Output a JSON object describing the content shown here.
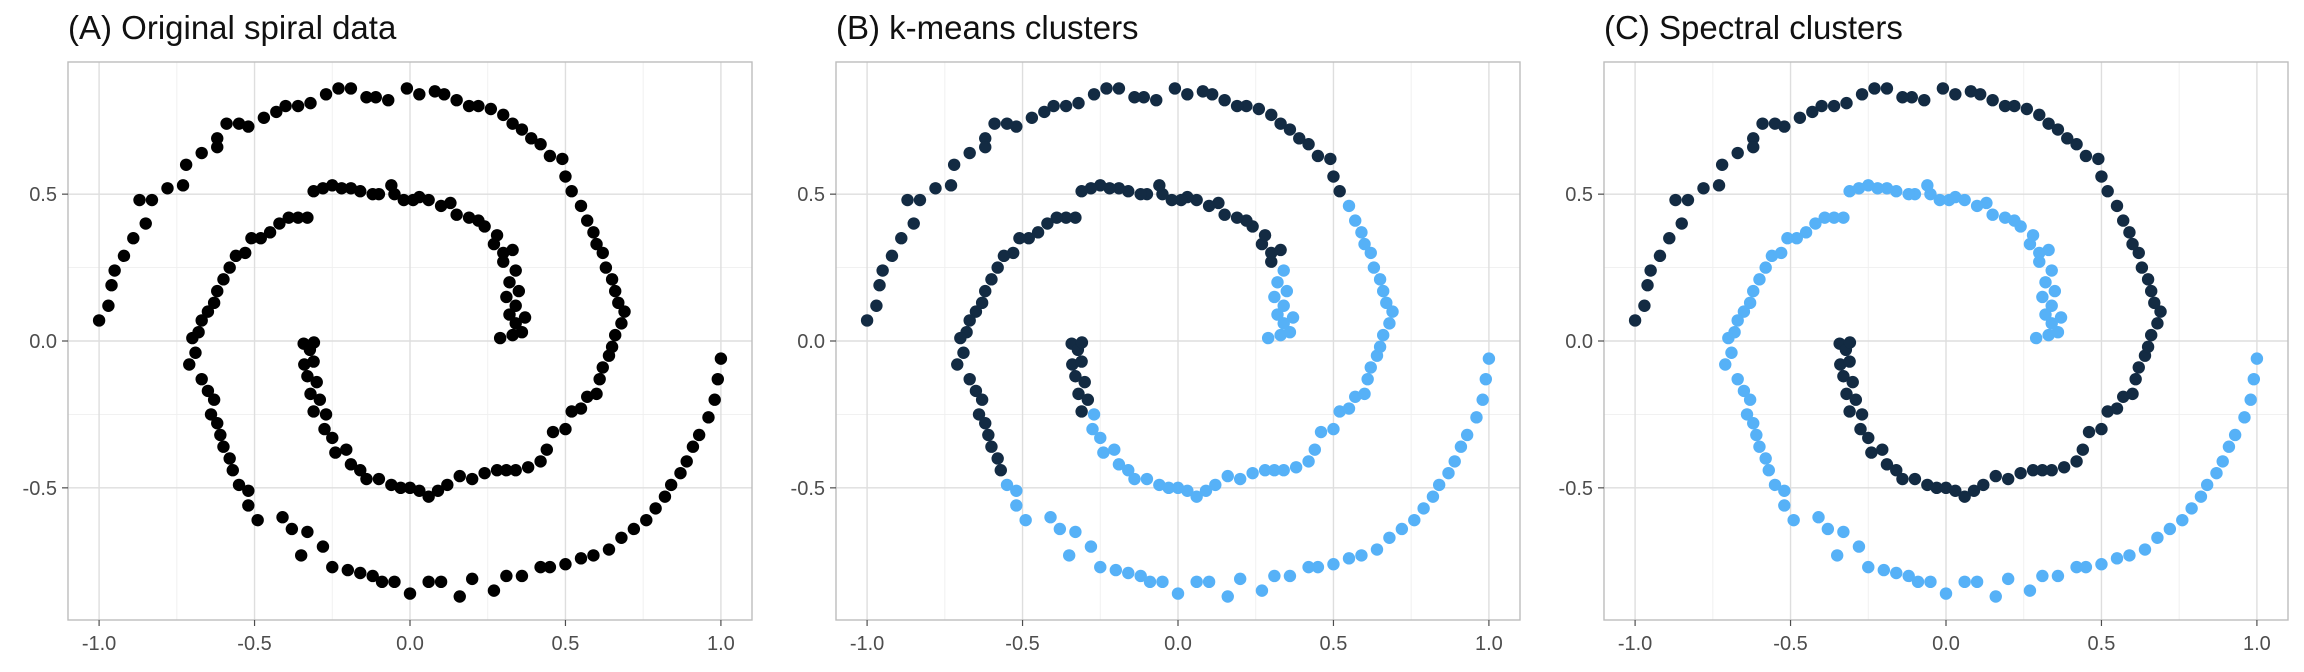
{
  "colors": {
    "point_default": "#000000",
    "cluster_1": "#132B43",
    "cluster_2": "#56B1F7"
  },
  "chart_data": [
    {
      "type": "scatter",
      "title": "(A) Original spiral data",
      "xlim": [
        -1.1,
        1.1
      ],
      "ylim": [
        -0.95,
        0.95
      ],
      "xticks": [
        -1.0,
        -0.5,
        0.0,
        0.5,
        1.0
      ],
      "xtick_labels": [
        "-1.0",
        "-0.5",
        "0.0",
        "0.5",
        "1.0"
      ],
      "yticks": [
        -0.5,
        0.0,
        0.5
      ],
      "ytick_labels": [
        "-0.5",
        "0.0",
        "0.5"
      ],
      "grid": true,
      "legend": "none",
      "coloring": "none"
    },
    {
      "type": "scatter",
      "title": "(B) k-means clusters",
      "xlim": [
        -1.1,
        1.1
      ],
      "ylim": [
        -0.95,
        0.95
      ],
      "xticks": [
        -1.0,
        -0.5,
        0.0,
        0.5,
        1.0
      ],
      "xtick_labels": [
        "-1.0",
        "-0.5",
        "0.0",
        "0.5",
        "1.0"
      ],
      "yticks": [
        -0.5,
        0.0,
        0.5
      ],
      "ytick_labels": [
        "-0.5",
        "0.0",
        "0.5"
      ],
      "grid": true,
      "legend": "none",
      "coloring": "kmeans"
    },
    {
      "type": "scatter",
      "title": "(C) Spectral clusters",
      "xlim": [
        -1.1,
        1.1
      ],
      "ylim": [
        -0.95,
        0.95
      ],
      "xticks": [
        -1.0,
        -0.5,
        0.0,
        0.5,
        1.0
      ],
      "xtick_labels": [
        "-1.0",
        "-0.5",
        "0.0",
        "0.5",
        "1.0"
      ],
      "yticks": [
        -0.5,
        0.0,
        0.5
      ],
      "ytick_labels": [
        "-0.5",
        "0.0",
        "0.5"
      ],
      "grid": true,
      "legend": "none",
      "coloring": "spectral"
    }
  ],
  "points": [
    [
      -0.342,
      -0.009,
      0,
      1
    ],
    [
      -0.322,
      -0.03,
      0,
      1
    ],
    [
      -0.309,
      -0.005,
      0,
      1
    ],
    [
      -0.34,
      -0.08,
      0,
      1
    ],
    [
      -0.31,
      -0.07,
      0,
      1
    ],
    [
      -0.33,
      -0.12,
      0,
      1
    ],
    [
      -0.3,
      -0.14,
      0,
      1
    ],
    [
      -0.32,
      -0.18,
      0,
      1
    ],
    [
      -0.29,
      -0.2,
      0,
      1
    ],
    [
      -0.31,
      -0.24,
      0,
      1
    ],
    [
      -0.27,
      -0.25,
      1,
      1
    ],
    [
      -0.275,
      -0.3,
      1,
      1
    ],
    [
      -0.25,
      -0.33,
      1,
      1
    ],
    [
      -0.24,
      -0.38,
      1,
      1
    ],
    [
      -0.205,
      -0.37,
      1,
      1
    ],
    [
      -0.19,
      -0.42,
      1,
      1
    ],
    [
      -0.16,
      -0.44,
      1,
      1
    ],
    [
      -0.14,
      -0.47,
      1,
      1
    ],
    [
      -0.1,
      -0.47,
      1,
      1
    ],
    [
      -0.06,
      -0.49,
      1,
      1
    ],
    [
      -0.03,
      -0.5,
      1,
      1
    ],
    [
      0.0,
      -0.5,
      1,
      1
    ],
    [
      0.03,
      -0.51,
      1,
      1
    ],
    [
      0.06,
      -0.53,
      1,
      1
    ],
    [
      0.09,
      -0.51,
      1,
      1
    ],
    [
      0.12,
      -0.49,
      1,
      1
    ],
    [
      0.16,
      -0.46,
      1,
      1
    ],
    [
      0.2,
      -0.47,
      1,
      1
    ],
    [
      0.24,
      -0.45,
      1,
      1
    ],
    [
      0.28,
      -0.44,
      1,
      1
    ],
    [
      0.31,
      -0.44,
      1,
      1
    ],
    [
      0.34,
      -0.44,
      1,
      1
    ],
    [
      0.38,
      -0.43,
      1,
      1
    ],
    [
      0.42,
      -0.41,
      1,
      1
    ],
    [
      0.44,
      -0.37,
      1,
      1
    ],
    [
      0.46,
      -0.31,
      1,
      1
    ],
    [
      0.5,
      -0.3,
      1,
      1
    ],
    [
      0.52,
      -0.24,
      1,
      1
    ],
    [
      0.55,
      -0.23,
      1,
      1
    ],
    [
      0.57,
      -0.19,
      1,
      1
    ],
    [
      0.6,
      -0.18,
      1,
      1
    ],
    [
      0.61,
      -0.13,
      1,
      1
    ],
    [
      0.62,
      -0.09,
      1,
      1
    ],
    [
      0.64,
      -0.05,
      1,
      1
    ],
    [
      0.65,
      -0.02,
      1,
      1
    ],
    [
      0.66,
      0.02,
      1,
      1
    ],
    [
      0.68,
      0.06,
      1,
      1
    ],
    [
      0.69,
      0.1,
      1,
      1
    ],
    [
      0.67,
      0.13,
      1,
      1
    ],
    [
      0.66,
      0.17,
      1,
      1
    ],
    [
      0.65,
      0.21,
      1,
      1
    ],
    [
      0.63,
      0.25,
      1,
      1
    ],
    [
      0.62,
      0.3,
      1,
      1
    ],
    [
      0.6,
      0.33,
      1,
      1
    ],
    [
      0.59,
      0.37,
      1,
      1
    ],
    [
      0.57,
      0.41,
      1,
      1
    ],
    [
      0.55,
      0.46,
      1,
      1
    ],
    [
      0.52,
      0.51,
      0,
      1
    ],
    [
      0.5,
      0.56,
      0,
      1
    ],
    [
      0.49,
      0.62,
      0,
      1
    ],
    [
      0.45,
      0.63,
      0,
      1
    ],
    [
      0.42,
      0.67,
      0,
      1
    ],
    [
      0.39,
      0.69,
      0,
      1
    ],
    [
      0.36,
      0.72,
      0,
      1
    ],
    [
      0.33,
      0.74,
      0,
      1
    ],
    [
      0.3,
      0.77,
      0,
      1
    ],
    [
      0.26,
      0.79,
      0,
      1
    ],
    [
      0.22,
      0.8,
      0,
      1
    ],
    [
      0.19,
      0.8,
      0,
      1
    ],
    [
      0.15,
      0.82,
      0,
      1
    ],
    [
      0.11,
      0.84,
      0,
      1
    ],
    [
      0.08,
      0.85,
      0,
      1
    ],
    [
      0.03,
      0.84,
      0,
      1
    ],
    [
      -0.01,
      0.86,
      0,
      1
    ],
    [
      -0.07,
      0.82,
      0,
      1
    ],
    [
      -0.11,
      0.83,
      0,
      1
    ],
    [
      -0.14,
      0.83,
      0,
      1
    ],
    [
      -0.19,
      0.86,
      0,
      1
    ],
    [
      -0.23,
      0.86,
      0,
      1
    ],
    [
      -0.27,
      0.84,
      0,
      1
    ],
    [
      -0.32,
      0.81,
      0,
      1
    ],
    [
      -0.36,
      0.8,
      0,
      1
    ],
    [
      -0.4,
      0.8,
      0,
      1
    ],
    [
      -0.43,
      0.78,
      0,
      1
    ],
    [
      -0.47,
      0.76,
      0,
      1
    ],
    [
      -0.52,
      0.73,
      0,
      1
    ],
    [
      -0.55,
      0.74,
      0,
      1
    ],
    [
      -0.59,
      0.74,
      0,
      1
    ],
    [
      -0.62,
      0.69,
      0,
      1
    ],
    [
      -0.62,
      0.66,
      0,
      1
    ],
    [
      -0.67,
      0.64,
      0,
      1
    ],
    [
      -0.72,
      0.6,
      0,
      1
    ],
    [
      -0.73,
      0.53,
      0,
      1
    ],
    [
      -0.78,
      0.52,
      0,
      1
    ],
    [
      -0.83,
      0.48,
      0,
      1
    ],
    [
      -0.87,
      0.48,
      0,
      1
    ],
    [
      -0.85,
      0.4,
      0,
      1
    ],
    [
      -0.89,
      0.35,
      0,
      1
    ],
    [
      -0.92,
      0.29,
      0,
      1
    ],
    [
      -0.95,
      0.24,
      0,
      1
    ],
    [
      -0.96,
      0.19,
      0,
      1
    ],
    [
      -0.97,
      0.12,
      0,
      1
    ],
    [
      -1.0,
      0.07,
      0,
      1
    ],
    [
      0.29,
      0.01,
      1,
      0
    ],
    [
      0.33,
      0.02,
      1,
      0
    ],
    [
      0.36,
      0.03,
      1,
      0
    ],
    [
      0.34,
      0.06,
      1,
      0
    ],
    [
      0.37,
      0.08,
      1,
      0
    ],
    [
      0.32,
      0.09,
      1,
      0
    ],
    [
      0.34,
      0.12,
      1,
      0
    ],
    [
      0.31,
      0.15,
      1,
      0
    ],
    [
      0.35,
      0.17,
      1,
      0
    ],
    [
      0.32,
      0.2,
      1,
      0
    ],
    [
      0.34,
      0.24,
      1,
      0
    ],
    [
      0.3,
      0.27,
      0,
      0
    ],
    [
      0.3,
      0.3,
      0,
      0
    ],
    [
      0.33,
      0.31,
      0,
      0
    ],
    [
      0.27,
      0.33,
      0,
      0
    ],
    [
      0.28,
      0.36,
      0,
      0
    ],
    [
      0.24,
      0.39,
      0,
      0
    ],
    [
      0.22,
      0.41,
      0,
      0
    ],
    [
      0.19,
      0.42,
      0,
      0
    ],
    [
      0.15,
      0.43,
      0,
      0
    ],
    [
      0.13,
      0.47,
      0,
      0
    ],
    [
      0.1,
      0.46,
      0,
      0
    ],
    [
      0.06,
      0.48,
      0,
      0
    ],
    [
      0.03,
      0.49,
      0,
      0
    ],
    [
      0.01,
      0.48,
      0,
      0
    ],
    [
      -0.02,
      0.48,
      0,
      0
    ],
    [
      -0.05,
      0.5,
      0,
      0
    ],
    [
      -0.06,
      0.53,
      0,
      0
    ],
    [
      -0.1,
      0.5,
      0,
      0
    ],
    [
      -0.12,
      0.5,
      0,
      0
    ],
    [
      -0.16,
      0.51,
      0,
      0
    ],
    [
      -0.19,
      0.52,
      0,
      0
    ],
    [
      -0.22,
      0.52,
      0,
      0
    ],
    [
      -0.25,
      0.53,
      0,
      0
    ],
    [
      -0.28,
      0.52,
      0,
      0
    ],
    [
      -0.31,
      0.51,
      0,
      0
    ],
    [
      -0.33,
      0.42,
      0,
      0
    ],
    [
      -0.36,
      0.42,
      0,
      0
    ],
    [
      -0.39,
      0.42,
      0,
      0
    ],
    [
      -0.42,
      0.4,
      0,
      0
    ],
    [
      -0.45,
      0.37,
      0,
      0
    ],
    [
      -0.48,
      0.35,
      0,
      0
    ],
    [
      -0.51,
      0.35,
      0,
      0
    ],
    [
      -0.53,
      0.3,
      0,
      0
    ],
    [
      -0.56,
      0.29,
      0,
      0
    ],
    [
      -0.58,
      0.25,
      0,
      0
    ],
    [
      -0.6,
      0.21,
      0,
      0
    ],
    [
      -0.62,
      0.17,
      0,
      0
    ],
    [
      -0.63,
      0.13,
      0,
      0
    ],
    [
      -0.65,
      0.1,
      0,
      0
    ],
    [
      -0.67,
      0.07,
      0,
      0
    ],
    [
      -0.68,
      0.03,
      0,
      0
    ],
    [
      -0.7,
      0.01,
      0,
      0
    ],
    [
      -0.69,
      -0.04,
      0,
      0
    ],
    [
      -0.71,
      -0.08,
      0,
      0
    ],
    [
      -0.67,
      -0.13,
      0,
      0
    ],
    [
      -0.65,
      -0.17,
      0,
      0
    ],
    [
      -0.63,
      -0.2,
      0,
      0
    ],
    [
      -0.64,
      -0.25,
      0,
      0
    ],
    [
      -0.62,
      -0.28,
      0,
      0
    ],
    [
      -0.61,
      -0.32,
      0,
      0
    ],
    [
      -0.6,
      -0.36,
      0,
      0
    ],
    [
      -0.58,
      -0.4,
      0,
      0
    ],
    [
      -0.57,
      -0.44,
      0,
      0
    ],
    [
      -0.55,
      -0.49,
      1,
      0
    ],
    [
      -0.52,
      -0.51,
      1,
      0
    ],
    [
      -0.52,
      -0.56,
      1,
      0
    ],
    [
      -0.49,
      -0.61,
      1,
      0
    ],
    [
      -0.41,
      -0.6,
      1,
      0
    ],
    [
      -0.38,
      -0.64,
      1,
      0
    ],
    [
      -0.33,
      -0.65,
      1,
      0
    ],
    [
      -0.35,
      -0.73,
      1,
      0
    ],
    [
      -0.28,
      -0.7,
      1,
      0
    ],
    [
      -0.25,
      -0.77,
      1,
      0
    ],
    [
      -0.2,
      -0.78,
      1,
      0
    ],
    [
      -0.16,
      -0.79,
      1,
      0
    ],
    [
      -0.12,
      -0.8,
      1,
      0
    ],
    [
      -0.09,
      -0.82,
      1,
      0
    ],
    [
      -0.05,
      -0.82,
      1,
      0
    ],
    [
      0.0,
      -0.86,
      1,
      0
    ],
    [
      0.06,
      -0.82,
      1,
      0
    ],
    [
      0.1,
      -0.82,
      1,
      0
    ],
    [
      0.16,
      -0.87,
      1,
      0
    ],
    [
      0.2,
      -0.81,
      1,
      0
    ],
    [
      0.27,
      -0.85,
      1,
      0
    ],
    [
      0.31,
      -0.8,
      1,
      0
    ],
    [
      0.36,
      -0.8,
      1,
      0
    ],
    [
      0.42,
      -0.77,
      1,
      0
    ],
    [
      0.45,
      -0.77,
      1,
      0
    ],
    [
      0.5,
      -0.76,
      1,
      0
    ],
    [
      0.55,
      -0.74,
      1,
      0
    ],
    [
      0.59,
      -0.73,
      1,
      0
    ],
    [
      0.64,
      -0.71,
      1,
      0
    ],
    [
      0.68,
      -0.67,
      1,
      0
    ],
    [
      0.72,
      -0.64,
      1,
      0
    ],
    [
      0.76,
      -0.61,
      1,
      0
    ],
    [
      0.79,
      -0.57,
      1,
      0
    ],
    [
      0.82,
      -0.53,
      1,
      0
    ],
    [
      0.84,
      -0.49,
      1,
      0
    ],
    [
      0.87,
      -0.45,
      1,
      0
    ],
    [
      0.89,
      -0.41,
      1,
      0
    ],
    [
      0.91,
      -0.36,
      1,
      0
    ],
    [
      0.93,
      -0.32,
      1,
      0
    ],
    [
      0.96,
      -0.26,
      1,
      0
    ],
    [
      0.98,
      -0.2,
      1,
      0
    ],
    [
      0.99,
      -0.13,
      1,
      0
    ],
    [
      1.0,
      -0.06,
      1,
      0
    ]
  ]
}
